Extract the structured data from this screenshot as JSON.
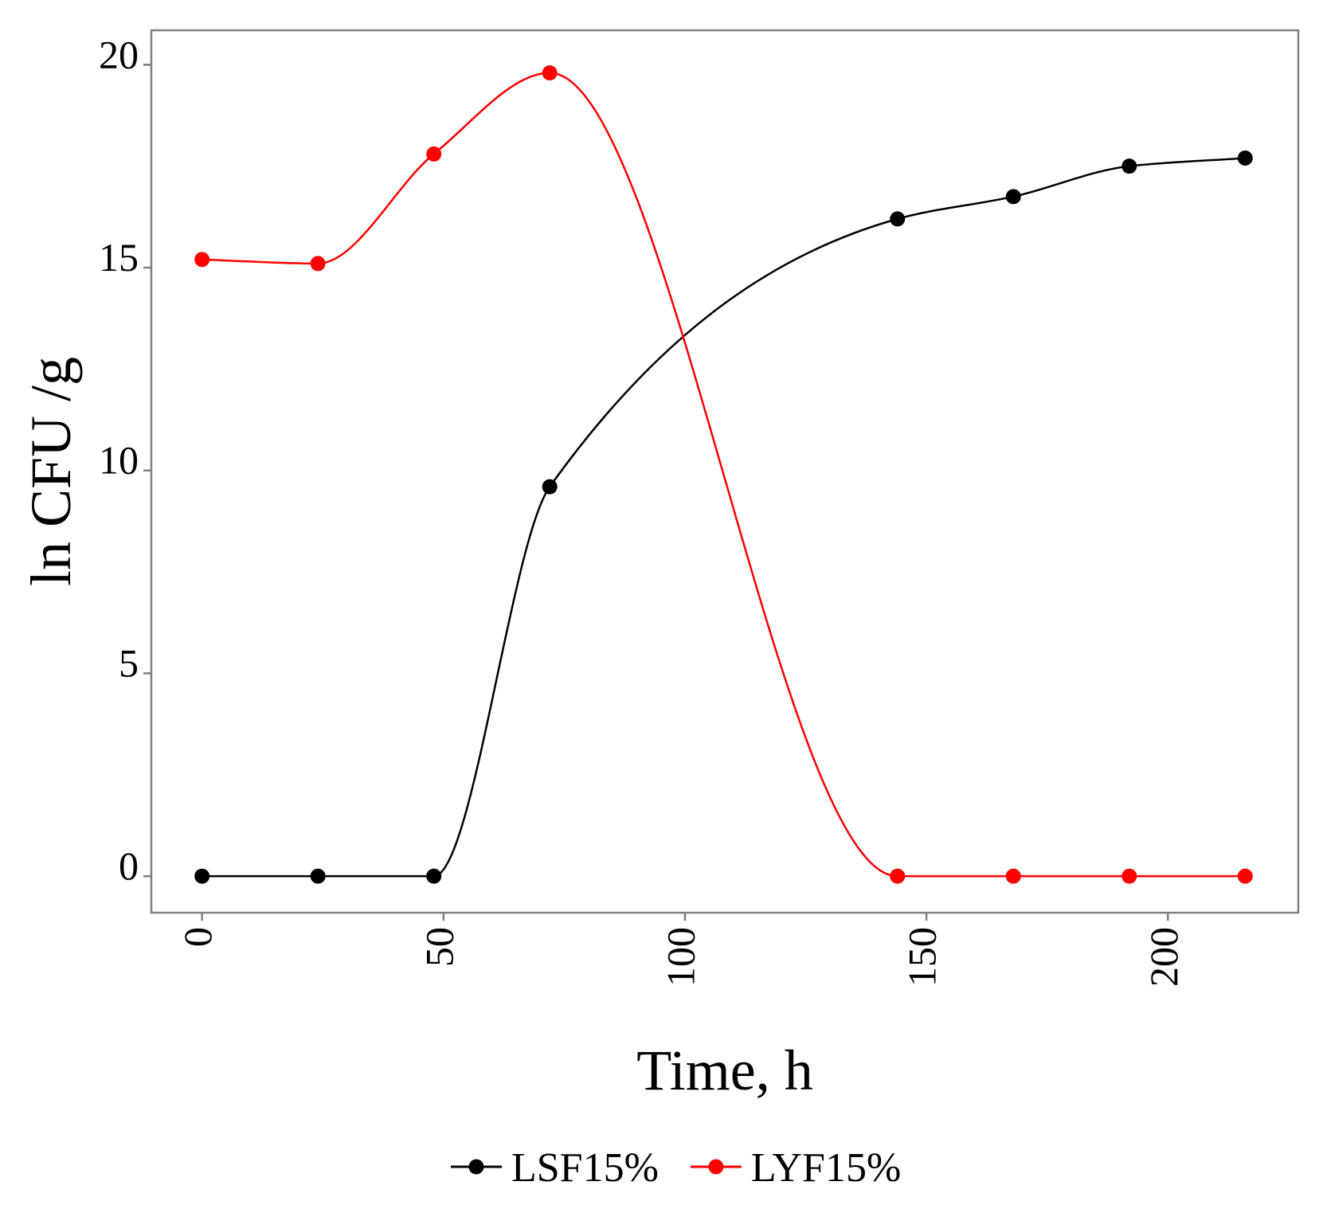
{
  "chart_data": {
    "type": "line",
    "title": "",
    "xlabel": "Time, h",
    "ylabel": "ln CFU /g",
    "xlim": [
      -10.5,
      227
    ],
    "ylim": [
      -0.9,
      20.85
    ],
    "x_ticks": [
      0,
      50,
      100,
      150,
      200
    ],
    "x_tick_labels": [
      "0",
      "50",
      "100",
      "150",
      "200"
    ],
    "y_ticks": [
      0,
      5,
      10,
      15,
      20
    ],
    "y_tick_labels": [
      "0",
      "5",
      "10",
      "15",
      "20"
    ],
    "x": [
      0,
      24,
      48,
      72,
      144,
      168,
      192,
      216
    ],
    "series": [
      {
        "name": "LSF15%",
        "color": "#000000",
        "values": [
          0,
          0,
          0,
          9.6,
          16.2,
          16.75,
          17.5,
          17.7
        ]
      },
      {
        "name": "LYF15%",
        "color": "#ff0000",
        "values": [
          15.2,
          15.1,
          17.8,
          19.8,
          0,
          0,
          0,
          0
        ]
      }
    ],
    "grid": false,
    "legend_position": "bottom-center"
  }
}
